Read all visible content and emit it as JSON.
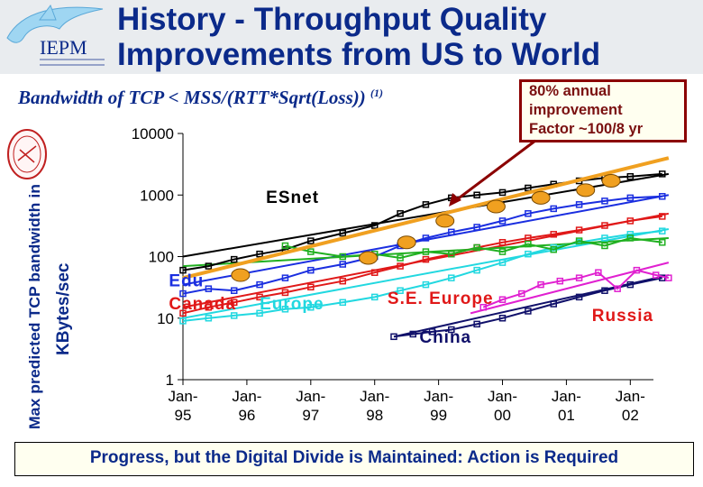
{
  "header": {
    "title_line1": "History - Throughput Quality",
    "title_line2": "Improvements from US to World",
    "logo_text": "IEPM"
  },
  "formula": {
    "text": "Bandwidth of TCP < MSS/(RTT*Sqrt(Loss))",
    "footnote": "(1)"
  },
  "callout": {
    "line1": "80% annual",
    "line2": "improvement",
    "line3": "Factor ~100/8 yr"
  },
  "footer": {
    "text": "Progress, but the Digital Divide is Maintained: Action is Required"
  },
  "colors": {
    "title": "#0b2a8a",
    "esnet": "#000000",
    "edu": "#1a2ee0",
    "canada": "#e01818",
    "europe": "#22d8e0",
    "se_europe": "#20b020",
    "china": "#10106a",
    "russia": "#e020d0",
    "trend": "#f0a020",
    "callout_border": "#8b0000"
  },
  "chart_data": {
    "type": "line",
    "yscale": "log",
    "ylim": [
      1,
      10000
    ],
    "xlim": [
      1995,
      2002.7
    ],
    "ylabel_line1": "Max predicted TCP bandwidth in",
    "ylabel_line2": "KBytes/sec",
    "y_ticks": [
      "1",
      "10",
      "100",
      "1000",
      "10000"
    ],
    "x_ticks": [
      {
        "line1": "Jan-",
        "line2": "95"
      },
      {
        "line1": "Jan-",
        "line2": "96"
      },
      {
        "line1": "Jan-",
        "line2": "97"
      },
      {
        "line1": "Jan-",
        "line2": "98"
      },
      {
        "line1": "Jan-",
        "line2": "99"
      },
      {
        "line1": "Jan-",
        "line2": "00"
      },
      {
        "line1": "Jan-",
        "line2": "01"
      },
      {
        "line1": "Jan-",
        "line2": "02"
      }
    ],
    "series": [
      {
        "name": "ESnet",
        "color": "#000000",
        "points": [
          [
            1995.0,
            60
          ],
          [
            1995.4,
            70
          ],
          [
            1995.8,
            90
          ],
          [
            1996.2,
            110
          ],
          [
            1996.6,
            130
          ],
          [
            1997.0,
            180
          ],
          [
            1997.5,
            240
          ],
          [
            1998.0,
            320
          ],
          [
            1998.4,
            500
          ],
          [
            1998.8,
            700
          ],
          [
            1999.2,
            900
          ],
          [
            1999.6,
            1000
          ],
          [
            2000.0,
            1100
          ],
          [
            2000.4,
            1300
          ],
          [
            2000.8,
            1500
          ],
          [
            2001.2,
            1700
          ],
          [
            2001.6,
            1900
          ],
          [
            2002.0,
            2000
          ],
          [
            2002.5,
            2200
          ]
        ]
      },
      {
        "name": "Edu",
        "color": "#1a2ee0",
        "points": [
          [
            1995.0,
            25
          ],
          [
            1995.4,
            30
          ],
          [
            1995.8,
            28
          ],
          [
            1996.2,
            35
          ],
          [
            1996.6,
            45
          ],
          [
            1997.0,
            60
          ],
          [
            1997.5,
            75
          ],
          [
            1998.0,
            100
          ],
          [
            1998.4,
            150
          ],
          [
            1998.8,
            200
          ],
          [
            1999.2,
            250
          ],
          [
            1999.6,
            300
          ],
          [
            2000.0,
            380
          ],
          [
            2000.4,
            500
          ],
          [
            2000.8,
            600
          ],
          [
            2001.2,
            700
          ],
          [
            2001.6,
            800
          ],
          [
            2002.0,
            900
          ],
          [
            2002.5,
            950
          ]
        ]
      },
      {
        "name": "Canada",
        "color": "#e01818",
        "points": [
          [
            1995.0,
            12
          ],
          [
            1995.4,
            15
          ],
          [
            1995.8,
            18
          ],
          [
            1996.2,
            22
          ],
          [
            1996.6,
            26
          ],
          [
            1997.0,
            32
          ],
          [
            1997.5,
            40
          ],
          [
            1998.0,
            55
          ],
          [
            1998.4,
            70
          ],
          [
            1998.8,
            90
          ],
          [
            1999.2,
            110
          ],
          [
            1999.6,
            140
          ],
          [
            2000.0,
            170
          ],
          [
            2000.4,
            200
          ],
          [
            2000.8,
            230
          ],
          [
            2001.2,
            270
          ],
          [
            2001.6,
            320
          ],
          [
            2002.0,
            380
          ],
          [
            2002.5,
            450
          ]
        ]
      },
      {
        "name": "Europe",
        "color": "#22d8e0",
        "points": [
          [
            1995.0,
            9
          ],
          [
            1995.4,
            10
          ],
          [
            1995.8,
            11
          ],
          [
            1996.2,
            12
          ],
          [
            1996.6,
            14
          ],
          [
            1997.0,
            15
          ],
          [
            1997.5,
            18
          ],
          [
            1998.0,
            22
          ],
          [
            1998.4,
            28
          ],
          [
            1998.8,
            35
          ],
          [
            1999.2,
            45
          ],
          [
            1999.6,
            60
          ],
          [
            2000.0,
            80
          ],
          [
            2000.4,
            110
          ],
          [
            2000.8,
            140
          ],
          [
            2001.2,
            170
          ],
          [
            2001.6,
            200
          ],
          [
            2002.0,
            230
          ],
          [
            2002.5,
            260
          ]
        ]
      },
      {
        "name": "S.E. Europe",
        "color": "#20b020",
        "points": [
          [
            1996.6,
            150
          ],
          [
            1997.0,
            120
          ],
          [
            1997.5,
            100
          ],
          [
            1998.0,
            110
          ],
          [
            1998.4,
            95
          ],
          [
            1998.8,
            120
          ],
          [
            1999.2,
            110
          ],
          [
            1999.6,
            140
          ],
          [
            2000.0,
            120
          ],
          [
            2000.4,
            160
          ],
          [
            2000.8,
            130
          ],
          [
            2001.2,
            180
          ],
          [
            2001.6,
            150
          ],
          [
            2002.0,
            200
          ],
          [
            2002.5,
            170
          ]
        ]
      },
      {
        "name": "China",
        "color": "#10106a",
        "points": [
          [
            1998.3,
            5
          ],
          [
            1998.6,
            5.5
          ],
          [
            1998.9,
            6
          ],
          [
            1999.2,
            6.5
          ],
          [
            1999.6,
            8
          ],
          [
            2000.0,
            10
          ],
          [
            2000.4,
            13
          ],
          [
            2000.8,
            17
          ],
          [
            2001.2,
            22
          ],
          [
            2001.6,
            28
          ],
          [
            2002.0,
            35
          ],
          [
            2002.5,
            45
          ]
        ]
      },
      {
        "name": "Russia",
        "color": "#e020d0",
        "points": [
          [
            1999.7,
            15
          ],
          [
            2000.0,
            20
          ],
          [
            2000.3,
            25
          ],
          [
            2000.6,
            35
          ],
          [
            2000.9,
            40
          ],
          [
            2001.2,
            45
          ],
          [
            2001.5,
            55
          ],
          [
            2001.8,
            30
          ],
          [
            2002.1,
            60
          ],
          [
            2002.4,
            50
          ],
          [
            2002.6,
            45
          ]
        ]
      }
    ],
    "trend_line": {
      "color": "#f0a020",
      "points": [
        [
          1995.0,
          45
        ],
        [
          2002.6,
          4000
        ]
      ]
    },
    "trend_markers": [
      [
        1995.9,
        50
      ],
      [
        1997.9,
        95
      ],
      [
        1998.5,
        170
      ],
      [
        1999.1,
        380
      ],
      [
        1999.9,
        650
      ],
      [
        2000.6,
        900
      ],
      [
        2001.3,
        1200
      ],
      [
        2001.7,
        1700
      ]
    ],
    "fit_lines": [
      {
        "color": "#000000",
        "points": [
          [
            1995.0,
            100
          ],
          [
            2002.6,
            2200
          ]
        ]
      },
      {
        "color": "#1a2ee0",
        "points": [
          [
            1995.0,
            35
          ],
          [
            2002.6,
            1000
          ]
        ]
      },
      {
        "color": "#e01818",
        "points": [
          [
            1995.0,
            15
          ],
          [
            2002.6,
            500
          ]
        ]
      },
      {
        "color": "#22d8e0",
        "points": [
          [
            1995.0,
            10
          ],
          [
            2002.6,
            280
          ]
        ]
      },
      {
        "color": "#20b020",
        "points": [
          [
            1995.0,
            70
          ],
          [
            2002.6,
            200
          ]
        ]
      },
      {
        "color": "#10106a",
        "points": [
          [
            1998.3,
            5
          ],
          [
            2002.6,
            50
          ]
        ]
      },
      {
        "color": "#e020d0",
        "points": [
          [
            1999.5,
            12
          ],
          [
            2002.6,
            80
          ]
        ]
      }
    ],
    "series_labels": [
      {
        "text": "ESnet",
        "color": "#000000",
        "x": 1996.3,
        "y": 750
      },
      {
        "text": "Edu",
        "color": "#1a2ee0",
        "x": 1994.78,
        "y": 33
      },
      {
        "text": "Canada",
        "color": "#e01818",
        "x": 1994.78,
        "y": 14
      },
      {
        "text": "Europe",
        "color": "#22d8e0",
        "x": 1996.2,
        "y": 14
      },
      {
        "text": "S.E. Europe",
        "color": "#e01818",
        "x": 1998.2,
        "y": 17
      },
      {
        "text": "China",
        "color": "#10106a",
        "x": 1998.7,
        "y": 4
      },
      {
        "text": "Russia",
        "color": "#e01818",
        "x": 2001.4,
        "y": 9
      }
    ]
  }
}
